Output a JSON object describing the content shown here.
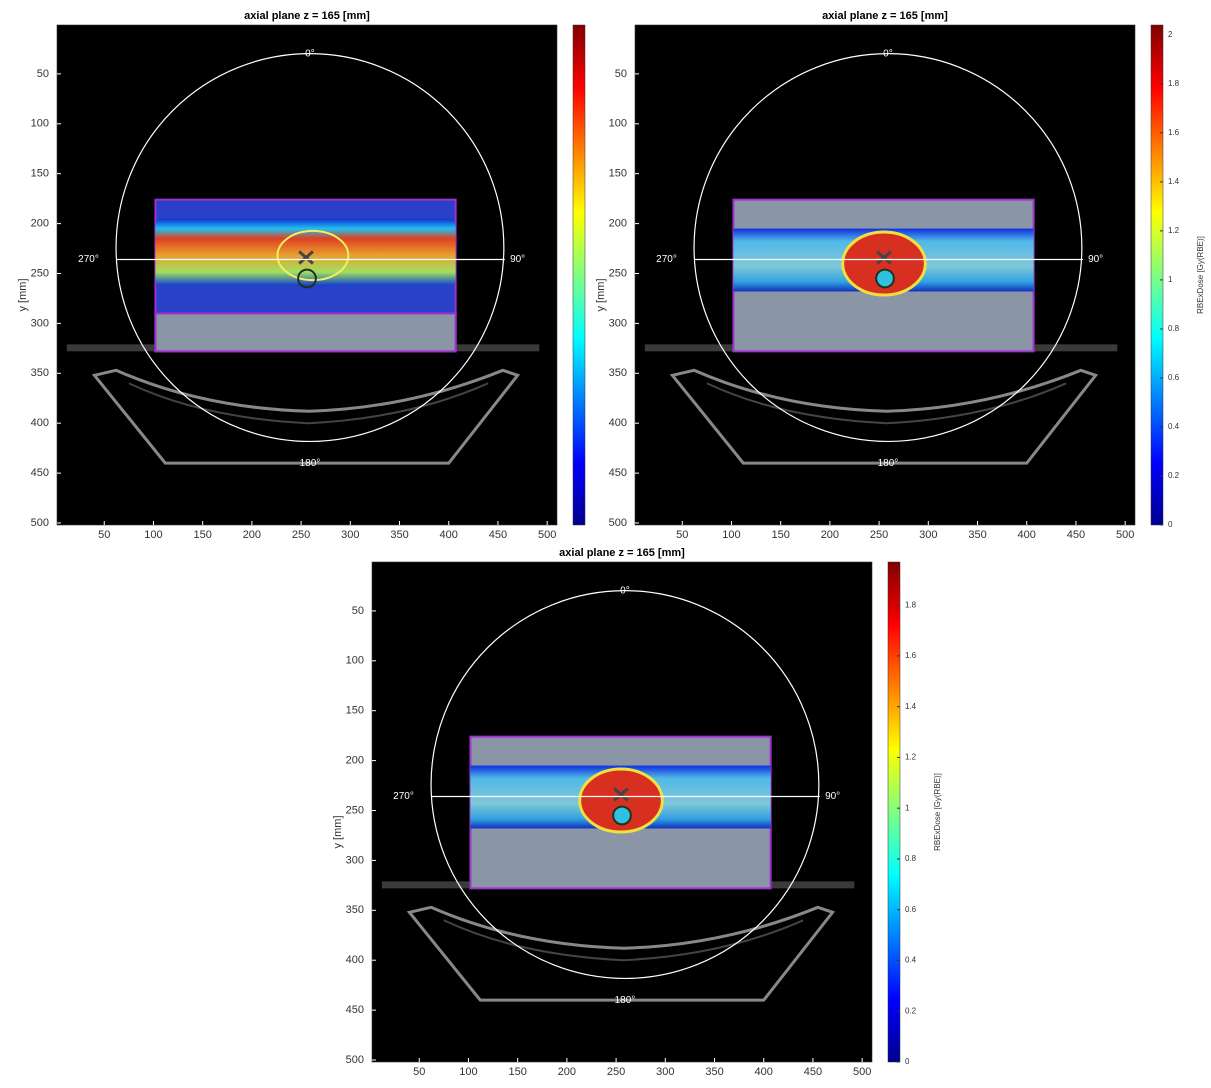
{
  "chart_data": [
    {
      "type": "image",
      "title": "axial plane z = 165 [mm]",
      "ylabel": "y [mm]",
      "xlim": [
        2,
        510
      ],
      "ylim": [
        1,
        502
      ],
      "xticks": [
        50,
        100,
        150,
        200,
        250,
        300,
        350,
        400,
        450,
        500
      ],
      "yticks": [
        50,
        100,
        150,
        200,
        250,
        300,
        350,
        400,
        450,
        500
      ],
      "annotations": [
        "0°",
        "90°",
        "180°",
        "270°"
      ],
      "colorbar": {
        "colormap": "jet",
        "clim": [
          0,
          2.04
        ]
      }
    },
    {
      "type": "image",
      "title": "axial plane z = 165 [mm]",
      "ylabel": "y [mm]",
      "xlim": [
        2,
        510
      ],
      "ylim": [
        1,
        502
      ],
      "xticks": [
        50,
        100,
        150,
        200,
        250,
        300,
        350,
        400,
        450,
        500
      ],
      "yticks": [
        50,
        100,
        150,
        200,
        250,
        300,
        350,
        400,
        450,
        500
      ],
      "annotations": [
        "0°",
        "90°",
        "180°",
        "270°"
      ],
      "colorbar": {
        "colormap": "jet",
        "clim": [
          0,
          2.04
        ],
        "ticks": [
          0,
          0.2,
          0.4,
          0.6,
          0.8,
          1,
          1.2,
          1.4,
          1.6,
          1.8,
          2
        ],
        "label": "RBExDose [Gy(RBE)]"
      }
    },
    {
      "type": "image",
      "title": "axial plane z = 165 [mm]",
      "ylabel": "y [mm]",
      "xlim": [
        2,
        510
      ],
      "ylim": [
        1,
        502
      ],
      "xticks": [
        50,
        100,
        150,
        200,
        250,
        300,
        350,
        400,
        450,
        500
      ],
      "yticks": [
        50,
        100,
        150,
        200,
        250,
        300,
        350,
        400,
        450,
        500
      ],
      "annotations": [
        "0°",
        "90°",
        "180°",
        "270°"
      ],
      "colorbar": {
        "colormap": "jet",
        "clim": [
          0,
          1.97
        ],
        "ticks": [
          0,
          0.2,
          0.4,
          0.6,
          0.8,
          1,
          1.2,
          1.4,
          1.6,
          1.8
        ],
        "label": "RBExDose [Gy(RBE)]"
      }
    }
  ]
}
